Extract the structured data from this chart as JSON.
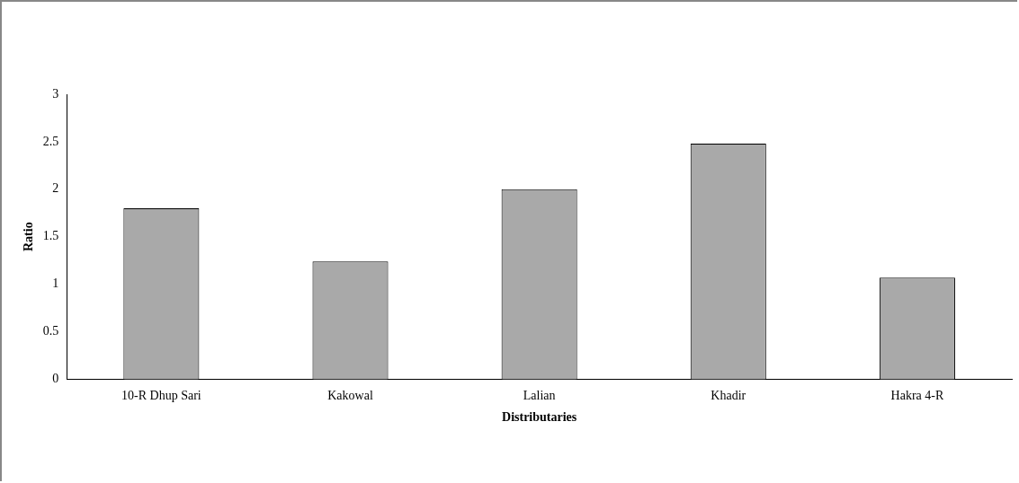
{
  "chart_data": {
    "type": "bar",
    "xlabel": "Distributaries",
    "ylabel": "Ratio",
    "categories": [
      "10-R Dhup Sari",
      "Kakowal",
      "Lalian",
      "Khadir",
      "Hakra 4-R"
    ],
    "values": [
      1.8,
      1.24,
      2.0,
      2.48,
      1.07
    ],
    "color": "#a9a9a9",
    "ylim": [
      0,
      3
    ],
    "yticks": [
      0,
      0.5,
      1,
      1.5,
      2,
      2.5,
      3
    ],
    "grid": false,
    "legend": false
  }
}
